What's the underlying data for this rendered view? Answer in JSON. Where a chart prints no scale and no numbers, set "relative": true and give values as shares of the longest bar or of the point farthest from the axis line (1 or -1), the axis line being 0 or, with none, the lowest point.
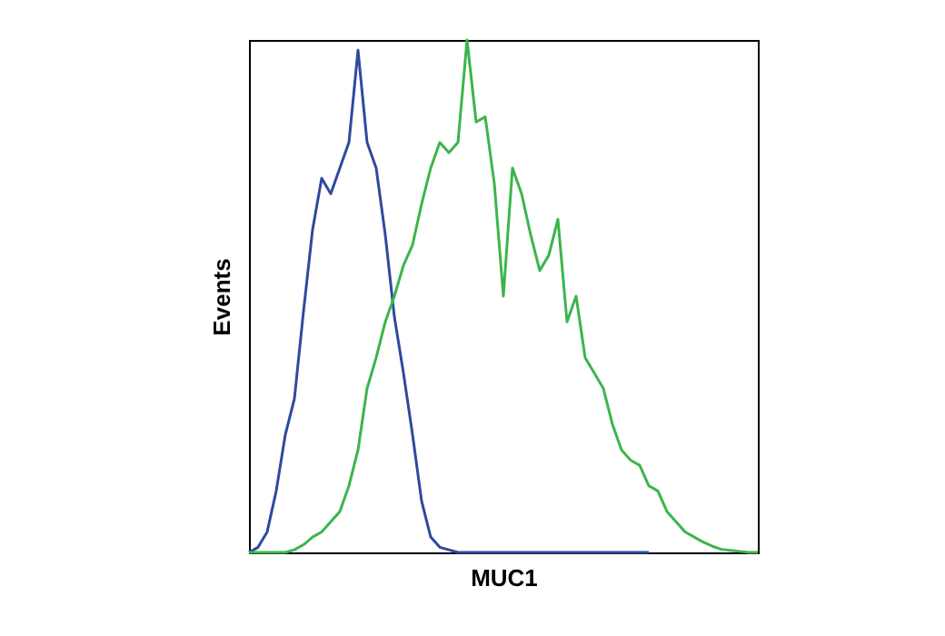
{
  "chart_data": {
    "type": "line",
    "xlabel": "MUC1",
    "ylabel": "Events",
    "relative": true,
    "tick_labels": false,
    "categories": [
      null,
      null,
      null,
      null,
      null,
      null,
      null,
      null,
      null,
      null,
      null,
      null,
      null,
      null,
      null,
      null,
      null,
      null,
      null,
      null,
      null,
      null,
      null,
      null,
      null,
      null,
      null,
      null,
      null,
      null,
      null,
      null,
      null,
      null,
      null,
      null,
      null,
      null,
      null,
      null,
      null,
      null,
      null,
      null,
      null,
      null,
      null,
      null,
      null,
      null,
      null,
      null,
      null,
      null,
      null,
      null,
      null
    ],
    "series": [
      {
        "color": "#2e4a9e",
        "values": [
          0,
          0.01,
          0.04,
          0.12,
          0.23,
          0.3,
          0.47,
          0.63,
          0.73,
          0.7,
          0.75,
          0.8,
          0.98,
          0.8,
          0.75,
          0.62,
          0.46,
          0.35,
          0.23,
          0.1,
          0.03,
          0.01,
          0.005,
          0,
          0,
          0,
          0,
          0,
          0,
          0,
          0,
          0,
          0,
          0,
          0,
          0,
          0,
          0,
          0,
          0,
          0,
          0,
          0,
          0,
          0,
          null,
          null,
          null,
          null,
          null,
          null,
          null,
          null,
          null,
          null,
          null,
          null
        ]
      },
      {
        "color": "#3cb54a",
        "values": [
          0,
          0,
          0,
          0,
          0,
          0.005,
          0.015,
          0.03,
          0.04,
          0.06,
          0.08,
          0.13,
          0.2,
          0.32,
          0.38,
          0.45,
          0.5,
          0.56,
          0.6,
          0.68,
          0.75,
          0.8,
          0.78,
          0.8,
          1.0,
          0.84,
          0.85,
          0.72,
          0.5,
          0.75,
          0.7,
          0.62,
          0.55,
          0.58,
          0.65,
          0.45,
          0.5,
          0.38,
          0.35,
          0.32,
          0.25,
          0.2,
          0.18,
          0.17,
          0.13,
          0.12,
          0.08,
          0.06,
          0.04,
          0.03,
          0.02,
          0.012,
          0.006,
          0.004,
          0.002,
          0,
          0
        ]
      }
    ]
  }
}
